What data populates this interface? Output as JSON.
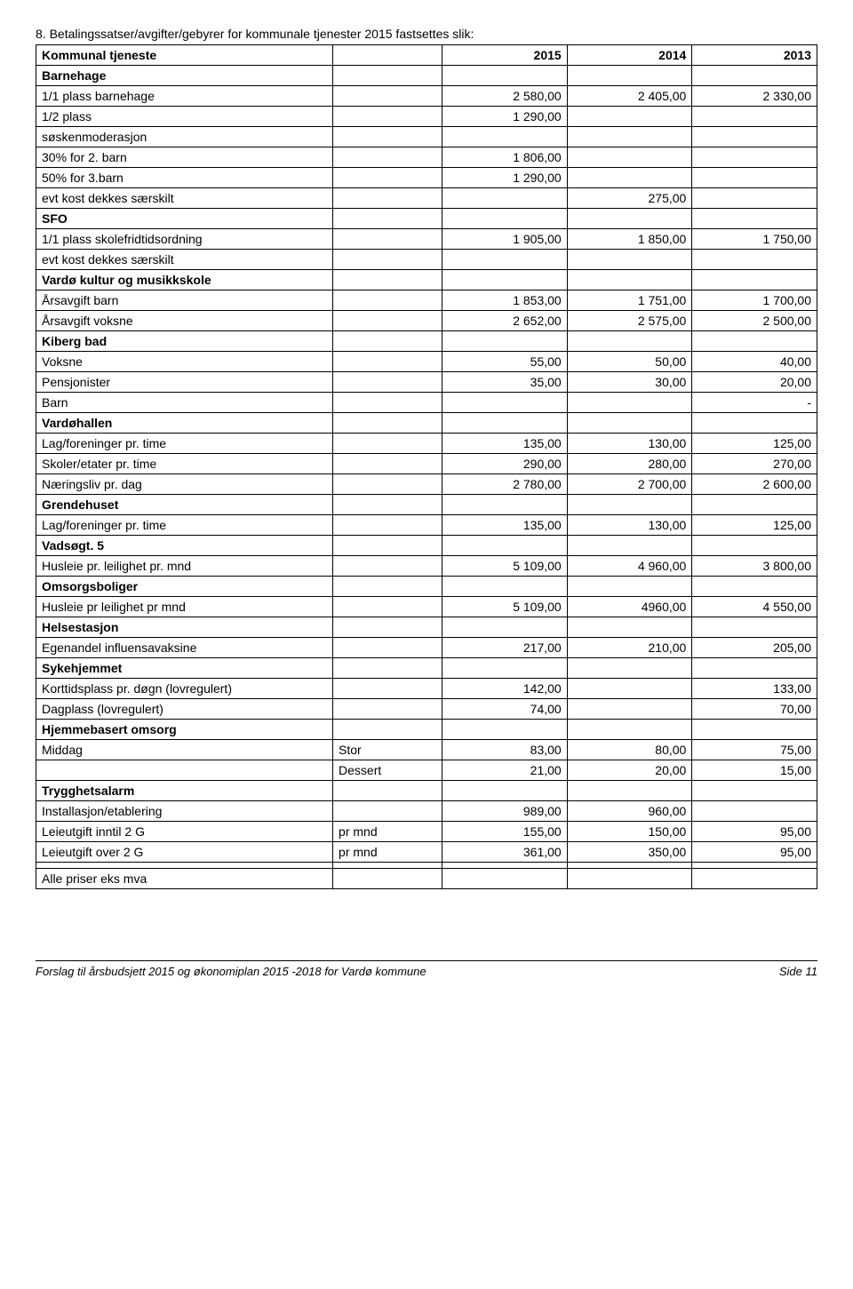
{
  "heading": "8. Betalingssatser/avgifter/gebyrer for kommunale tjenester 2015 fastsettes slik:",
  "footer_left": "Forslag til årsbudsjett 2015 og økonomiplan 2015 -2018 for Vardø kommune",
  "footer_right": "Side 11",
  "cols": [
    "Kommunal tjeneste",
    "",
    "2015",
    "2014",
    "2013"
  ],
  "rows": [
    {
      "c": [
        "Barnehage",
        "",
        "",
        "",
        ""
      ],
      "bold": true
    },
    {
      "c": [
        "1/1 plass barnehage",
        "",
        "2 580,00",
        "2 405,00",
        "2 330,00"
      ]
    },
    {
      "c": [
        "1/2 plass",
        "",
        "1 290,00",
        "",
        ""
      ]
    },
    {
      "c": [
        "søskenmoderasjon",
        "",
        "",
        "",
        ""
      ]
    },
    {
      "c": [
        "30% for 2. barn",
        "",
        "1 806,00",
        "",
        ""
      ]
    },
    {
      "c": [
        "50% for 3.barn",
        "",
        "1 290,00",
        "",
        ""
      ]
    },
    {
      "c": [
        "evt kost dekkes særskilt",
        "",
        "",
        "275,00",
        ""
      ]
    },
    {
      "c": [
        "SFO",
        "",
        "",
        "",
        ""
      ],
      "bold": true
    },
    {
      "c": [
        "1/1 plass skolefridtidsordning",
        "",
        "1 905,00",
        "1 850,00",
        "1 750,00"
      ]
    },
    {
      "c": [
        "evt kost dekkes særskilt",
        "",
        "",
        "",
        ""
      ]
    },
    {
      "c": [
        "Vardø kultur og musikkskole",
        "",
        "",
        "",
        ""
      ],
      "bold": true
    },
    {
      "c": [
        "Årsavgift barn",
        "",
        "1 853,00",
        "1 751,00",
        "1 700,00"
      ]
    },
    {
      "c": [
        "Årsavgift voksne",
        "",
        "2 652,00",
        "2 575,00",
        "2 500,00"
      ]
    },
    {
      "c": [
        "Kiberg bad",
        "",
        "",
        "",
        ""
      ],
      "bold": true
    },
    {
      "c": [
        "Voksne",
        "",
        "55,00",
        "50,00",
        "40,00"
      ]
    },
    {
      "c": [
        "Pensjonister",
        "",
        "35,00",
        "30,00",
        "20,00"
      ]
    },
    {
      "c": [
        "Barn",
        "",
        "",
        "",
        "-"
      ]
    },
    {
      "c": [
        "Vardøhallen",
        "",
        "",
        "",
        ""
      ],
      "bold": true
    },
    {
      "c": [
        "Lag/foreninger pr. time",
        "",
        "135,00",
        "130,00",
        "125,00"
      ]
    },
    {
      "c": [
        "Skoler/etater pr. time",
        "",
        "290,00",
        "280,00",
        "270,00"
      ]
    },
    {
      "c": [
        "Næringsliv pr. dag",
        "",
        "2 780,00",
        "2 700,00",
        "2 600,00"
      ]
    },
    {
      "c": [
        "Grendehuset",
        "",
        "",
        "",
        ""
      ],
      "bold": true
    },
    {
      "c": [
        "Lag/foreninger pr. time",
        "",
        "135,00",
        "130,00",
        "125,00"
      ]
    },
    {
      "c": [
        "Vadsøgt. 5",
        "",
        "",
        "",
        ""
      ],
      "bold": true
    },
    {
      "c": [
        "Husleie pr. leilighet pr. mnd",
        "",
        "5 109,00",
        "4 960,00",
        "3 800,00"
      ]
    },
    {
      "c": [
        "Omsorgsboliger",
        "",
        "",
        "",
        ""
      ],
      "bold": true
    },
    {
      "c": [
        "Husleie pr leilighet pr mnd",
        "",
        "5 109,00",
        "4960,00",
        "4 550,00"
      ]
    },
    {
      "c": [
        "Helsestasjon",
        "",
        "",
        "",
        ""
      ],
      "bold": true
    },
    {
      "c": [
        "Egenandel influensavaksine",
        "",
        "217,00",
        "210,00",
        "205,00"
      ]
    },
    {
      "c": [
        "Sykehjemmet",
        "",
        "",
        "",
        ""
      ],
      "bold": true
    },
    {
      "c": [
        "Korttidsplass pr. døgn (lovregulert)",
        "",
        "142,00",
        "",
        "133,00"
      ]
    },
    {
      "c": [
        "Dagplass (lovregulert)",
        "",
        "74,00",
        "",
        "70,00"
      ]
    },
    {
      "c": [
        "Hjemmebasert omsorg",
        "",
        "",
        "",
        ""
      ],
      "bold": true
    },
    {
      "c": [
        "Middag",
        "Stor",
        "83,00",
        "80,00",
        "75,00"
      ]
    },
    {
      "c": [
        "",
        "Dessert",
        "21,00",
        "20,00",
        "15,00"
      ]
    },
    {
      "c": [
        "Trygghetsalarm",
        "",
        "",
        "",
        ""
      ],
      "bold": true
    },
    {
      "c": [
        "Installasjon/etablering",
        "",
        "989,00",
        "960,00",
        ""
      ]
    },
    {
      "c": [
        "Leieutgift inntil 2 G",
        "pr mnd",
        "155,00",
        "150,00",
        "95,00"
      ]
    },
    {
      "c": [
        "Leieutgift over 2 G",
        "pr mnd",
        "361,00",
        "350,00",
        "95,00"
      ]
    },
    {
      "c": [
        "",
        "",
        "",
        "",
        ""
      ]
    },
    {
      "c": [
        "Alle priser eks mva",
        "",
        "",
        "",
        ""
      ]
    }
  ]
}
